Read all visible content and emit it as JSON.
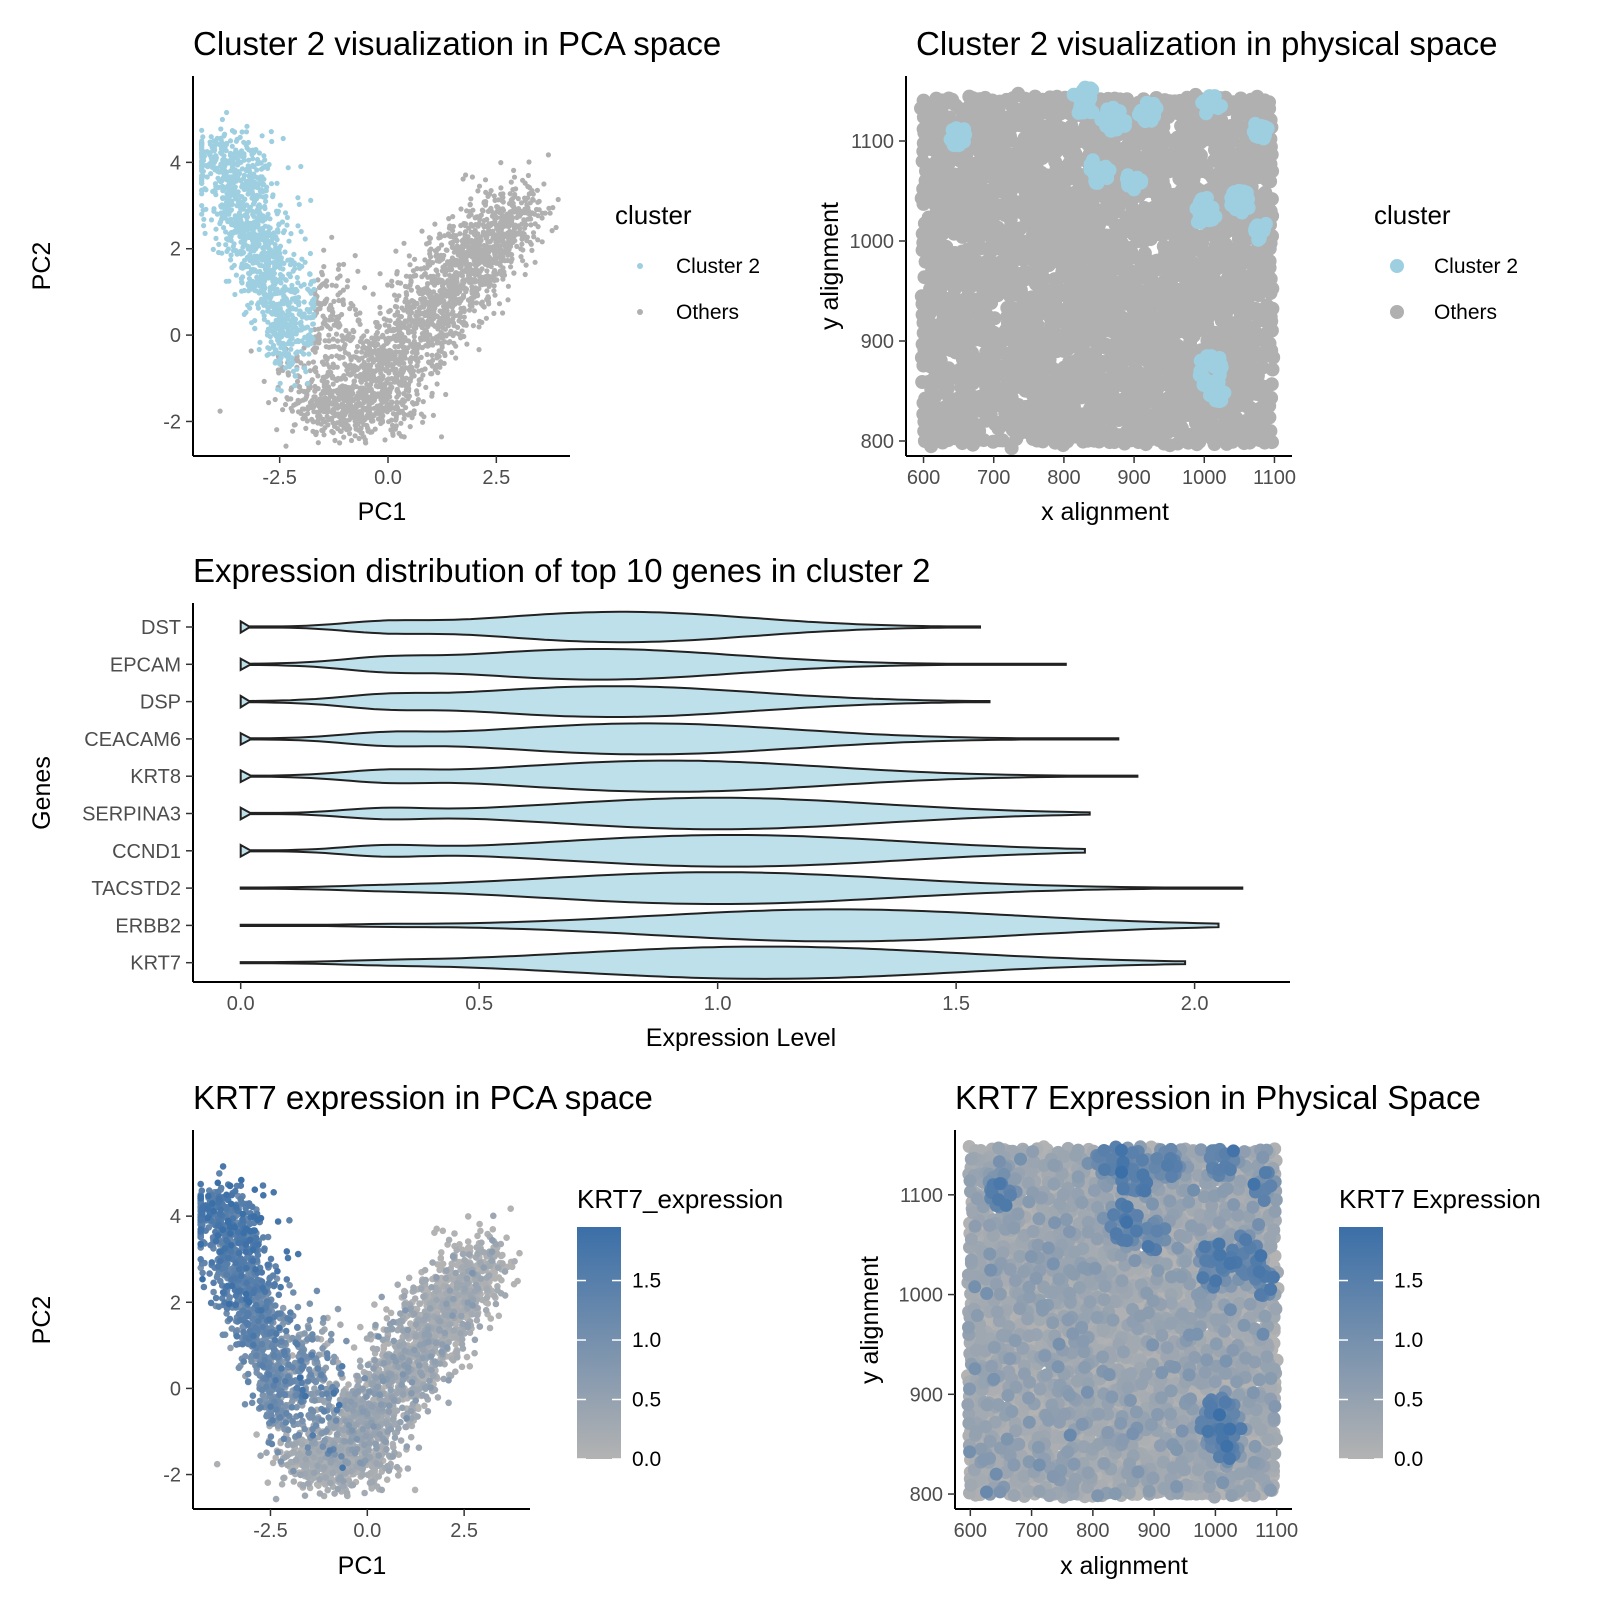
{
  "colors": {
    "cluster": "#9ecfe0",
    "others": "#b0b0b0",
    "violin_fill": "#bee0ea",
    "violin_stroke": "#222222",
    "grad_low": "#b3b3b3",
    "grad_high": "#3b6fa8"
  },
  "chart_data": [
    {
      "id": "pca_cluster",
      "type": "scatter",
      "title": "Cluster 2 visualization in PCA space",
      "xlabel": "PC1",
      "ylabel": "PC2",
      "xlim": [
        -4.5,
        4.2
      ],
      "ylim": [
        -2.8,
        6.0
      ],
      "xticks": [
        -2.5,
        0.0,
        2.5
      ],
      "xtick_labels": [
        "-2.5",
        "0.0",
        "2.5"
      ],
      "yticks": [
        -2,
        0,
        2,
        4
      ],
      "ytick_labels": [
        "-2",
        "0",
        "2",
        "4"
      ],
      "legend": {
        "title": "cluster",
        "placement": "right",
        "entries": [
          "Cluster 2",
          "Others"
        ]
      },
      "series": [
        {
          "name": "Cluster 2",
          "region": {
            "left_tip": [
              -4.2,
              5.5
            ],
            "bottom": [
              -2.2,
              -0.6
            ],
            "right": [
              -0.5,
              2.3
            ]
          }
        },
        {
          "name": "Others",
          "region": {
            "left": [
              -2.4,
              -0.5
            ],
            "bottom": [
              -1.0,
              -2.5
            ],
            "right_top": [
              3.8,
              3.5
            ]
          }
        }
      ]
    },
    {
      "id": "phys_cluster",
      "type": "scatter",
      "title": "Cluster 2 visualization in physical space",
      "xlabel": "x alignment",
      "ylabel": "y alignment",
      "xlim": [
        575,
        1125
      ],
      "ylim": [
        785,
        1165
      ],
      "xticks": [
        600,
        700,
        800,
        900,
        1000,
        1100
      ],
      "xtick_labels": [
        "600",
        "700",
        "800",
        "900",
        "1000",
        "1100"
      ],
      "yticks": [
        800,
        900,
        1000,
        1100
      ],
      "ytick_labels": [
        "800",
        "900",
        "1000",
        "1100"
      ],
      "grid_extent": {
        "x": [
          600,
          1100
        ],
        "y": [
          800,
          1150
        ]
      },
      "legend": {
        "title": "cluster",
        "placement": "right",
        "entries": [
          "Cluster 2",
          "Others"
        ]
      },
      "cluster_patches": [
        {
          "x": 650,
          "y": 1105,
          "r": 14
        },
        {
          "x": 830,
          "y": 1140,
          "r": 18
        },
        {
          "x": 870,
          "y": 1120,
          "r": 18
        },
        {
          "x": 920,
          "y": 1130,
          "r": 14
        },
        {
          "x": 1010,
          "y": 1135,
          "r": 14
        },
        {
          "x": 1080,
          "y": 1110,
          "r": 12
        },
        {
          "x": 850,
          "y": 1070,
          "r": 16
        },
        {
          "x": 900,
          "y": 1060,
          "r": 12
        },
        {
          "x": 1000,
          "y": 1030,
          "r": 18
        },
        {
          "x": 1050,
          "y": 1040,
          "r": 16
        },
        {
          "x": 1080,
          "y": 1010,
          "r": 12
        },
        {
          "x": 1010,
          "y": 870,
          "r": 22
        },
        {
          "x": 1020,
          "y": 850,
          "r": 14
        }
      ]
    },
    {
      "id": "violin",
      "type": "violin",
      "title": "Expression distribution of top 10 genes in cluster 2",
      "xlabel": "Expression Level",
      "ylabel": "Genes",
      "xlim": [
        -0.1,
        2.2
      ],
      "xticks": [
        0.0,
        0.5,
        1.0,
        1.5,
        2.0
      ],
      "xtick_labels": [
        "0.0",
        "0.5",
        "1.0",
        "1.5",
        "2.0"
      ],
      "categories": [
        "DST",
        "EPCAM",
        "DSP",
        "CEACAM6",
        "KRT8",
        "SERPINA3",
        "CCND1",
        "TACSTD2",
        "ERBB2",
        "KRT7"
      ],
      "violins": [
        {
          "gene": "DST",
          "max": 1.55,
          "peak": 0.8
        },
        {
          "gene": "EPCAM",
          "max": 1.73,
          "peak": 0.75
        },
        {
          "gene": "DSP",
          "max": 1.57,
          "peak": 0.78
        },
        {
          "gene": "CEACAM6",
          "max": 1.84,
          "peak": 0.85
        },
        {
          "gene": "KRT8",
          "max": 1.88,
          "peak": 0.9
        },
        {
          "gene": "SERPINA3",
          "max": 1.78,
          "peak": 1.0
        },
        {
          "gene": "CCND1",
          "max": 1.77,
          "peak": 1.03
        },
        {
          "gene": "TACSTD2",
          "max": 2.1,
          "peak": 1.0
        },
        {
          "gene": "ERBB2",
          "max": 2.05,
          "peak": 1.25
        },
        {
          "gene": "KRT7",
          "max": 1.98,
          "peak": 1.1
        }
      ]
    },
    {
      "id": "pca_krt7",
      "type": "scatter",
      "title": "KRT7 expression in PCA space",
      "xlabel": "PC1",
      "ylabel": "PC2",
      "xlim": [
        -4.5,
        4.2
      ],
      "ylim": [
        -2.8,
        6.0
      ],
      "xticks": [
        -2.5,
        0.0,
        2.5
      ],
      "xtick_labels": [
        "-2.5",
        "0.0",
        "2.5"
      ],
      "yticks": [
        -2,
        0,
        2,
        4
      ],
      "ytick_labels": [
        "-2",
        "0",
        "2",
        "4"
      ],
      "colorbar": {
        "title": "KRT7_expression",
        "range": [
          0.0,
          1.95
        ],
        "ticks": [
          0.0,
          0.5,
          1.0,
          1.5
        ],
        "tick_labels": [
          "0.0",
          "0.5",
          "1.0",
          "1.5"
        ]
      }
    },
    {
      "id": "phys_krt7",
      "type": "scatter",
      "title": "KRT7 Expression in Physical Space",
      "xlabel": "x alignment",
      "ylabel": "y alignment",
      "xlim": [
        575,
        1125
      ],
      "ylim": [
        785,
        1165
      ],
      "xticks": [
        600,
        700,
        800,
        900,
        1000,
        1100
      ],
      "xtick_labels": [
        "600",
        "700",
        "800",
        "900",
        "1000",
        "1100"
      ],
      "yticks": [
        800,
        900,
        1000,
        1100
      ],
      "ytick_labels": [
        "800",
        "900",
        "1000",
        "1100"
      ],
      "colorbar": {
        "title": "KRT7 Expression",
        "range": [
          0.0,
          1.95
        ],
        "ticks": [
          0.0,
          0.5,
          1.0,
          1.5
        ],
        "tick_labels": [
          "0.0",
          "0.5",
          "1.0",
          "1.5"
        ]
      }
    }
  ]
}
